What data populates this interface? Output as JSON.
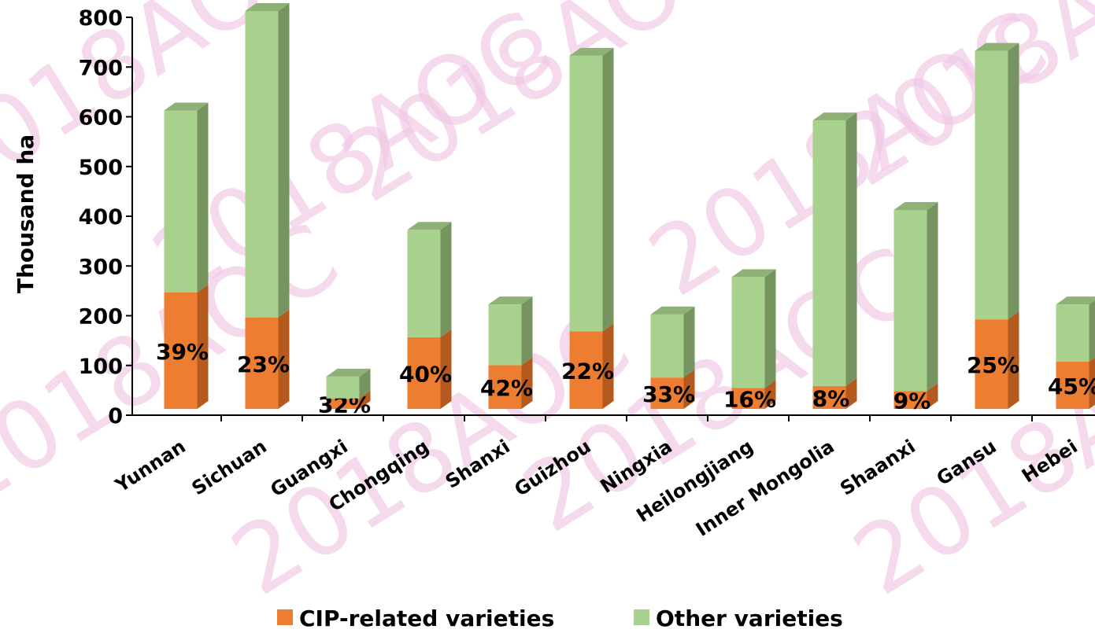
{
  "chart_data": {
    "type": "bar3d_stacked",
    "watermark": "2018AOC",
    "ylabel": "Thousand ha",
    "categories": [
      "Yunnan",
      "Sichuan",
      "Guangxi",
      "Chongqing",
      "Shanxi",
      "Guizhou",
      "Ningxia",
      "Heilongjiang",
      "Inner Mongolia",
      "Shaanxi",
      "Gansu",
      "Hebei"
    ],
    "series": [
      {
        "name": "CIP-related varieties",
        "color": "#ed7d31",
        "side_color": "#b45a1e",
        "top_color": "#f2a46c",
        "values": [
          234,
          184,
          21,
          144,
          88,
          156,
          63,
          42,
          46,
          36,
          180,
          95
        ]
      },
      {
        "name": "Other varieties",
        "color": "#a9d18e",
        "side_color": "#76945f",
        "top_color": "#8fb176",
        "values": [
          366,
          616,
          44,
          216,
          122,
          554,
          127,
          223,
          534,
          364,
          540,
          115
        ]
      }
    ],
    "share_labels": [
      "39%",
      "23%",
      "32%",
      "40%",
      "42%",
      "22%",
      "33%",
      "16%",
      "8%",
      "9%",
      "25%",
      "45%"
    ],
    "ylim": [
      0,
      800
    ],
    "yticks": [
      0,
      100,
      200,
      300,
      400,
      500,
      600,
      700,
      800
    ]
  }
}
